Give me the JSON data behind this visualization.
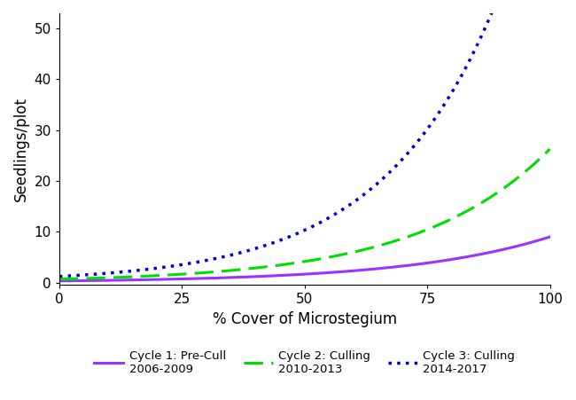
{
  "xlabel": "% Cover of Microstegium",
  "ylabel": "Seedlings/plot",
  "xlim": [
    0,
    100
  ],
  "ylim": [
    -0.5,
    53
  ],
  "xticks": [
    0,
    25,
    50,
    75,
    100
  ],
  "yticks": [
    0,
    10,
    20,
    30,
    40,
    50
  ],
  "background_color": "#ffffff",
  "curves": [
    {
      "label_line1": "Cycle 1: Pre-Cull",
      "label_line2": "2006-2009",
      "color": "#9933ff",
      "linestyle": "solid",
      "lw": 2.2,
      "a": 0.3,
      "b": 0.034
    },
    {
      "label_line1": "Cycle 2: Culling",
      "label_line2": "2010-2013",
      "color": "#00dd00",
      "linestyle": "dashed",
      "lw": 2.2,
      "a": 0.65,
      "b": 0.037
    },
    {
      "label_line1": "Cycle 3: Culling",
      "label_line2": "2014-2017",
      "color": "#0000cc",
      "linestyle": "dotted",
      "lw": 2.5,
      "a": 1.2,
      "b": 0.043
    }
  ]
}
